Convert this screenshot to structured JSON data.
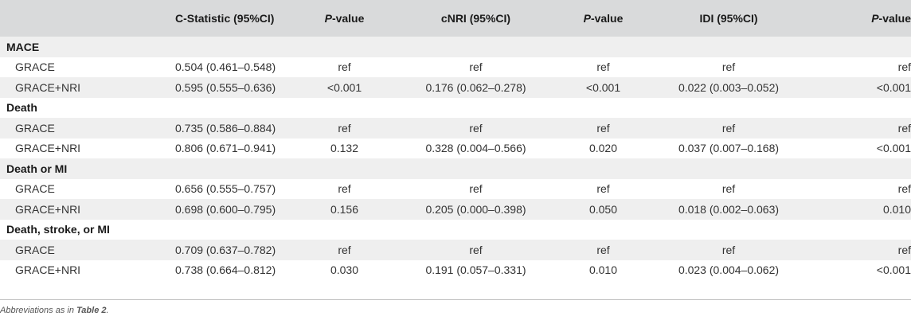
{
  "header": {
    "col0": "",
    "col1": "C-Statistic (95%CI)",
    "col2_italic": "P",
    "col2_rest": "-value",
    "col3": "cNRI (95%CI)",
    "col4_italic": "P",
    "col4_rest": "-value",
    "col5": "IDI (95%CI)",
    "col6_italic": "P",
    "col6_rest": "-value"
  },
  "groups": [
    {
      "title": "MACE",
      "rows": [
        {
          "label": "GRACE",
          "c_stat": "0.504 (0.461–0.548)",
          "p1": "ref",
          "cnri": "ref",
          "p2": "ref",
          "idi": "ref",
          "p3": "ref"
        },
        {
          "label": "GRACE+NRI",
          "c_stat": "0.595 (0.555–0.636)",
          "p1": "<0.001",
          "cnri": "0.176 (0.062–0.278)",
          "p2": "<0.001",
          "idi": "0.022 (0.003–0.052)",
          "p3": "<0.001"
        }
      ]
    },
    {
      "title": "Death",
      "rows": [
        {
          "label": "GRACE",
          "c_stat": "0.735 (0.586–0.884)",
          "p1": "ref",
          "cnri": "ref",
          "p2": "ref",
          "idi": "ref",
          "p3": "ref"
        },
        {
          "label": "GRACE+NRI",
          "c_stat": "0.806 (0.671–0.941)",
          "p1": "0.132",
          "cnri": "0.328 (0.004–0.566)",
          "p2": "0.020",
          "idi": "0.037 (0.007–0.168)",
          "p3": "<0.001"
        }
      ]
    },
    {
      "title": "Death or MI",
      "rows": [
        {
          "label": "GRACE",
          "c_stat": "0.656 (0.555–0.757)",
          "p1": "ref",
          "cnri": "ref",
          "p2": "ref",
          "idi": "ref",
          "p3": "ref"
        },
        {
          "label": "GRACE+NRI",
          "c_stat": "0.698 (0.600–0.795)",
          "p1": "0.156",
          "cnri": "0.205 (0.000–0.398)",
          "p2": "0.050",
          "idi": "0.018 (0.002–0.063)",
          "p3": "0.010"
        }
      ]
    },
    {
      "title": "Death, stroke, or MI",
      "rows": [
        {
          "label": "GRACE",
          "c_stat": "0.709 (0.637–0.782)",
          "p1": "ref",
          "cnri": "ref",
          "p2": "ref",
          "idi": "ref",
          "p3": "ref"
        },
        {
          "label": "GRACE+NRI",
          "c_stat": "0.738 (0.664–0.812)",
          "p1": "0.030",
          "cnri": "0.191 (0.057–0.331)",
          "p2": "0.010",
          "idi": "0.023 (0.004–0.062)",
          "p3": "<0.001"
        }
      ]
    }
  ],
  "footnote": {
    "prefix": "Abbreviations as in ",
    "ref": "Table 2",
    "suffix": "."
  },
  "colors": {
    "header_bg": "#d9dadb",
    "stripe_bg": "#efefef",
    "text": "#222222"
  }
}
